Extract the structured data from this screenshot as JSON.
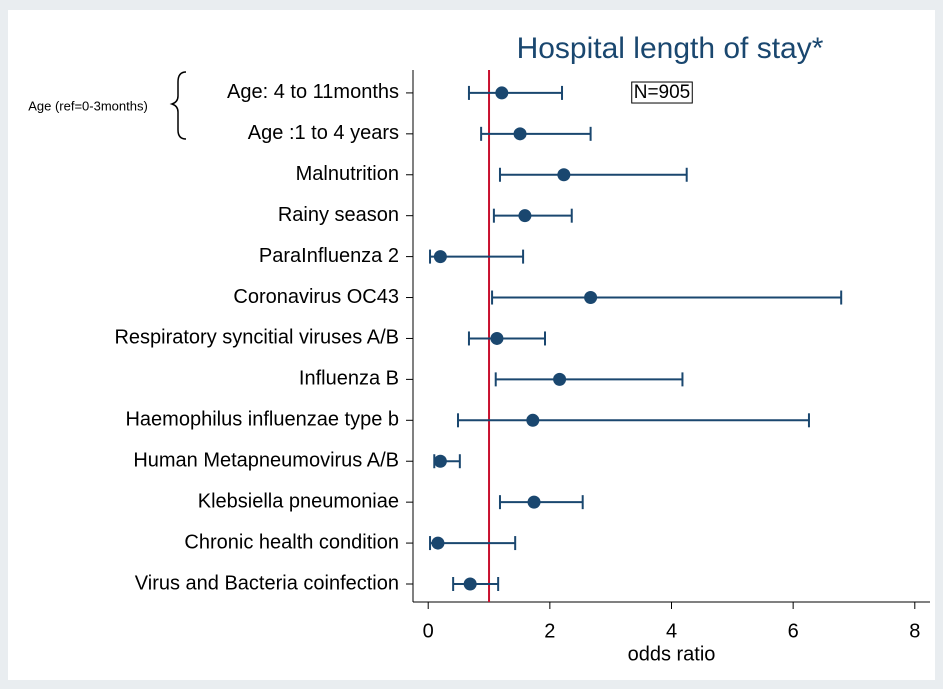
{
  "chart_data": {
    "type": "forest",
    "title": "Hospital length of stay*",
    "x_label": "odds ratio",
    "annotation": "N=905",
    "group_label": "Age (ref=0-3months)",
    "categories": [
      "Age: 4 to 11months",
      "Age :1 to 4 years",
      "Malnutrition",
      "Rainy season",
      "ParaInfluenza 2",
      "Coronavirus OC43",
      "Respiratory syncitial viruses A/B",
      "Influenza B",
      "Haemophilus influenzae type b ",
      "Human Metapneumovirus A/B",
      "Klebsiella pneumoniae",
      "Chronic health condition",
      "Virus and Bacteria coinfection"
    ],
    "series": [
      {
        "color": "#1a476f",
        "values": [
          1.21,
          1.51,
          2.23,
          1.59,
          0.2,
          2.67,
          1.13,
          2.16,
          1.72,
          0.2,
          1.74,
          0.16,
          0.69
        ],
        "lower": [
          0.67,
          0.87,
          1.18,
          1.08,
          0.03,
          1.05,
          0.67,
          1.11,
          0.49,
          0.1,
          1.18,
          0.03,
          0.41
        ],
        "upper": [
          2.2,
          2.67,
          4.25,
          2.36,
          1.56,
          6.79,
          1.92,
          4.18,
          6.26,
          0.52,
          2.54,
          1.43,
          1.15
        ]
      }
    ],
    "refline": 1,
    "refline_color": "#c8102e",
    "xlim": [
      -0.25,
      8.25
    ],
    "xticks": [
      0,
      2,
      4,
      6,
      8
    ]
  }
}
